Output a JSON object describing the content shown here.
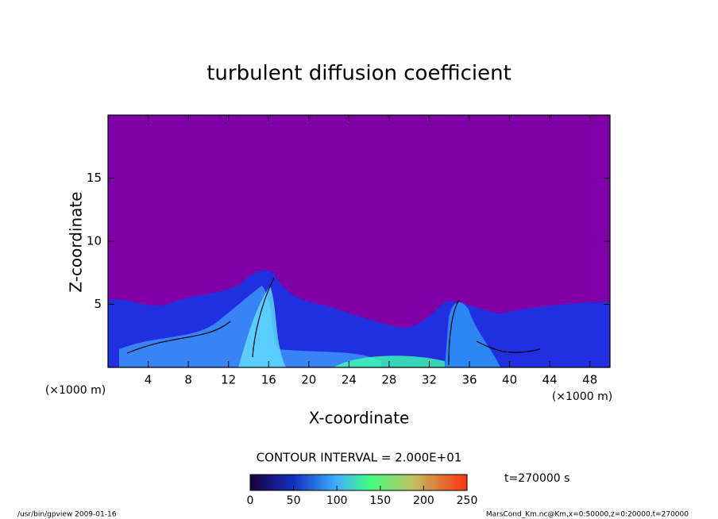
{
  "chart_data": {
    "type": "contour",
    "title": "turbulent diffusion coefficient",
    "xlabel": "X-coordinate",
    "ylabel": "Z-coordinate",
    "x_unit": "(×1000 m)",
    "y_unit": "(×1000 m)",
    "xlim": [
      0,
      50
    ],
    "ylim": [
      0,
      20
    ],
    "xticks": [
      4,
      8,
      12,
      16,
      20,
      24,
      28,
      32,
      36,
      40,
      44,
      48
    ],
    "yticks": [
      5,
      10,
      15
    ],
    "contour_interval": "CONTOUR INTERVAL = 2.000E+01",
    "time_label": "t=270000 s",
    "colorbar": {
      "lim": [
        0,
        250
      ],
      "ticks": [
        0,
        50,
        100,
        150,
        200,
        250
      ]
    },
    "footer_left": "/usr/bin/gpview  2009-01-16",
    "footer_right": "MarsCond_Km.nc@Km,x=0:50000,z=0:20000,t=270000"
  }
}
